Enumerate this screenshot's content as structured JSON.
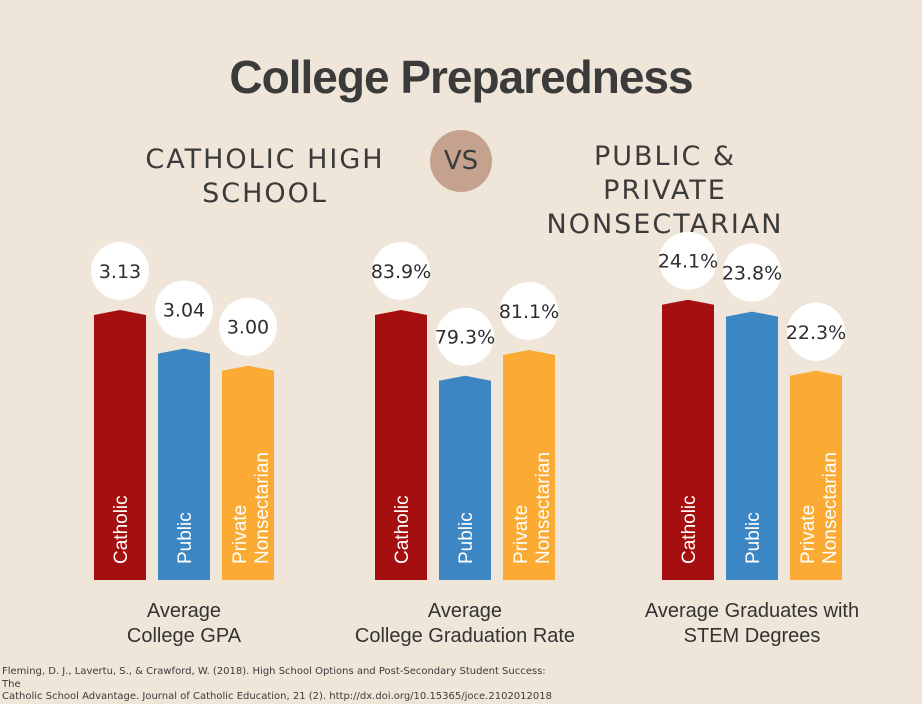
{
  "title": "College Preparedness",
  "left_label_line1": "CATHOLIC HIGH",
  "left_label_line2": "SCHOOL",
  "vs": "VS",
  "right_label_line1": "PUBLIC & PRIVATE",
  "right_label_line2": "NONSECTARIAN",
  "footer_line1": "Fleming, D. J., Lavertu, S., & Crawford, W. (2018). High School Options and Post-Secondary Student Success: The",
  "footer_line2": "Catholic School Advantage. Journal of Catholic Education, 21 (2). http://dx.doi.org/10.15365/joce.2102012018",
  "colors": {
    "catholic": "#a50f0f",
    "public": "#3c86c4",
    "private": "#fbab33",
    "bubble": "#ffffff",
    "background": "#efe5d9"
  },
  "chart_data": [
    {
      "type": "bar",
      "title_lines": [
        "Average",
        "College GPA"
      ],
      "categories": [
        [
          "Catholic"
        ],
        [
          "Public"
        ],
        [
          "Private",
          "Nonsectarian"
        ]
      ],
      "values": [
        3.13,
        3.04,
        3.0
      ],
      "value_labels": [
        "3.13",
        "3.04",
        "3.00"
      ],
      "ylim": [
        2.5,
        3.2
      ]
    },
    {
      "type": "bar",
      "title_lines": [
        "Average",
        "College Graduation Rate"
      ],
      "categories": [
        [
          "Catholic"
        ],
        [
          "Public"
        ],
        [
          "Private",
          "Nonsectarian"
        ]
      ],
      "values": [
        83.9,
        79.3,
        81.1
      ],
      "value_labels": [
        "83.9%",
        "79.3%",
        "81.1%"
      ],
      "ylim": [
        65,
        86
      ]
    },
    {
      "type": "bar",
      "title_lines": [
        "Average Graduates with",
        "STEM Degrees"
      ],
      "categories": [
        [
          "Catholic"
        ],
        [
          "Public"
        ],
        [
          "Private",
          "Nonsectarian"
        ]
      ],
      "values": [
        24.1,
        23.8,
        22.3
      ],
      "value_labels": [
        "24.1%",
        "23.8%",
        "22.3%"
      ],
      "ylim": [
        17,
        24.6
      ]
    }
  ]
}
